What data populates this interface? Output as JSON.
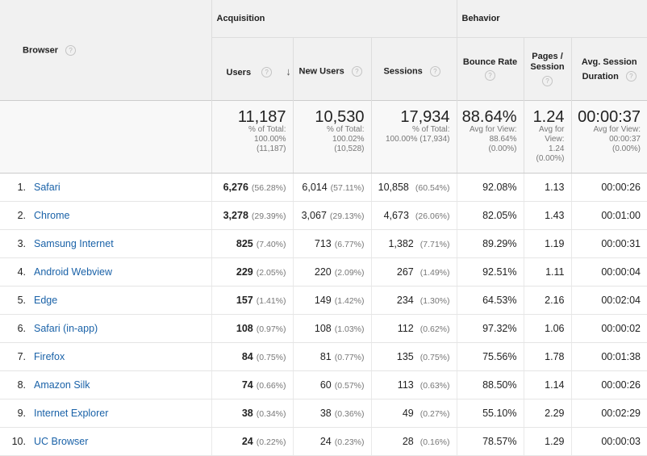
{
  "header": {
    "dimension": "Browser",
    "groups": {
      "acquisition": "Acquisition",
      "behavior": "Behavior"
    },
    "columns": {
      "users": "Users",
      "new_users": "New Users",
      "sessions": "Sessions",
      "bounce_rate": "Bounce Rate",
      "pages_session": "Pages / Session",
      "avg_duration": "Avg. Session Duration"
    },
    "help_glyph": "?",
    "sort_glyph": "↓"
  },
  "totals": {
    "users": {
      "value": "11,187",
      "l1": "% of Total:",
      "l2": "100.00%",
      "l3": "(11,187)"
    },
    "new_users": {
      "value": "10,530",
      "l1": "% of Total:",
      "l2": "100.02%",
      "l3": "(10,528)"
    },
    "sessions": {
      "value": "17,934",
      "l1": "% of Total:",
      "l2": "100.00% (17,934)"
    },
    "bounce_rate": {
      "value": "88.64%",
      "l1": "Avg for View:",
      "l2": "88.64%",
      "l3": "(0.00%)"
    },
    "pages_session": {
      "value": "1.24",
      "l1": "Avg for",
      "l2": "View:",
      "l3": "1.24",
      "l4": "(0.00%)"
    },
    "avg_duration": {
      "value": "00:00:37",
      "l1": "Avg for View:",
      "l2": "00:00:37",
      "l3": "(0.00%)"
    }
  },
  "rows": [
    {
      "idx": "1.",
      "browser": "Safari",
      "users": "6,276",
      "users_pct": "(56.28%)",
      "new_users": "6,014",
      "new_users_pct": "(57.11%)",
      "sessions": "10,858",
      "sessions_pct": "(60.54%)",
      "bounce": "92.08%",
      "pages": "1.13",
      "duration": "00:00:26"
    },
    {
      "idx": "2.",
      "browser": "Chrome",
      "users": "3,278",
      "users_pct": "(29.39%)",
      "new_users": "3,067",
      "new_users_pct": "(29.13%)",
      "sessions": "4,673",
      "sessions_pct": "(26.06%)",
      "bounce": "82.05%",
      "pages": "1.43",
      "duration": "00:01:00"
    },
    {
      "idx": "3.",
      "browser": "Samsung Internet",
      "users": "825",
      "users_pct": "(7.40%)",
      "new_users": "713",
      "new_users_pct": "(6.77%)",
      "sessions": "1,382",
      "sessions_pct": "(7.71%)",
      "bounce": "89.29%",
      "pages": "1.19",
      "duration": "00:00:31"
    },
    {
      "idx": "4.",
      "browser": "Android Webview",
      "users": "229",
      "users_pct": "(2.05%)",
      "new_users": "220",
      "new_users_pct": "(2.09%)",
      "sessions": "267",
      "sessions_pct": "(1.49%)",
      "bounce": "92.51%",
      "pages": "1.11",
      "duration": "00:00:04"
    },
    {
      "idx": "5.",
      "browser": "Edge",
      "users": "157",
      "users_pct": "(1.41%)",
      "new_users": "149",
      "new_users_pct": "(1.42%)",
      "sessions": "234",
      "sessions_pct": "(1.30%)",
      "bounce": "64.53%",
      "pages": "2.16",
      "duration": "00:02:04"
    },
    {
      "idx": "6.",
      "browser": "Safari (in-app)",
      "users": "108",
      "users_pct": "(0.97%)",
      "new_users": "108",
      "new_users_pct": "(1.03%)",
      "sessions": "112",
      "sessions_pct": "(0.62%)",
      "bounce": "97.32%",
      "pages": "1.06",
      "duration": "00:00:02"
    },
    {
      "idx": "7.",
      "browser": "Firefox",
      "users": "84",
      "users_pct": "(0.75%)",
      "new_users": "81",
      "new_users_pct": "(0.77%)",
      "sessions": "135",
      "sessions_pct": "(0.75%)",
      "bounce": "75.56%",
      "pages": "1.78",
      "duration": "00:01:38"
    },
    {
      "idx": "8.",
      "browser": "Amazon Silk",
      "users": "74",
      "users_pct": "(0.66%)",
      "new_users": "60",
      "new_users_pct": "(0.57%)",
      "sessions": "113",
      "sessions_pct": "(0.63%)",
      "bounce": "88.50%",
      "pages": "1.14",
      "duration": "00:00:26"
    },
    {
      "idx": "9.",
      "browser": "Internet Explorer",
      "users": "38",
      "users_pct": "(0.34%)",
      "new_users": "38",
      "new_users_pct": "(0.36%)",
      "sessions": "49",
      "sessions_pct": "(0.27%)",
      "bounce": "55.10%",
      "pages": "2.29",
      "duration": "00:02:29"
    },
    {
      "idx": "10.",
      "browser": "UC Browser",
      "users": "24",
      "users_pct": "(0.22%)",
      "new_users": "24",
      "new_users_pct": "(0.23%)",
      "sessions": "28",
      "sessions_pct": "(0.16%)",
      "bounce": "78.57%",
      "pages": "1.29",
      "duration": "00:00:03"
    }
  ]
}
